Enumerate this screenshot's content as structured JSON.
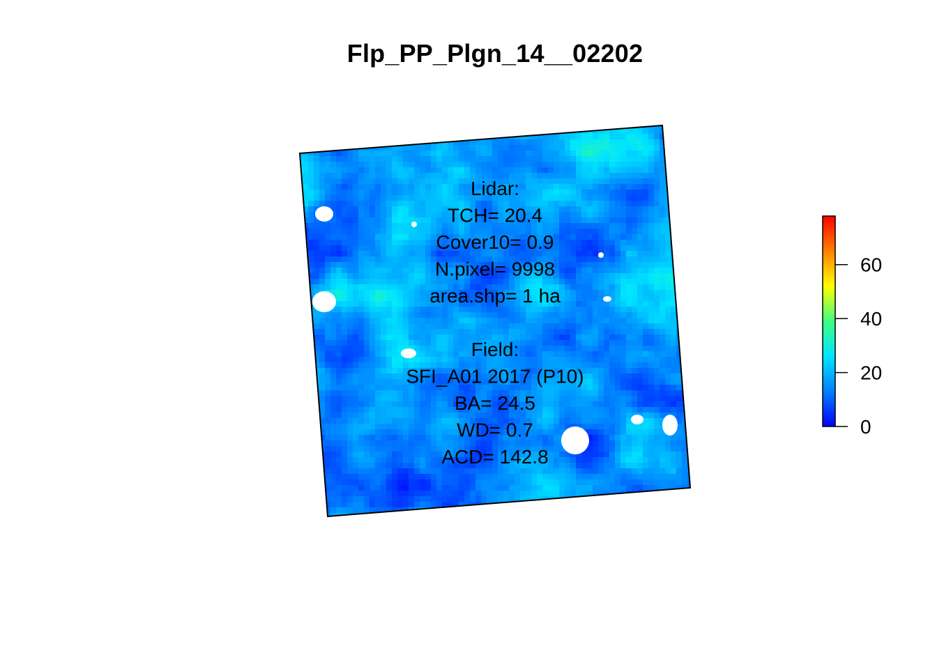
{
  "title": "Flp_PP_Plgn_14__02202",
  "chart_data": {
    "type": "heatmap",
    "title": "Flp_PP_Plgn_14__02202",
    "colorbar": {
      "min": 0,
      "max": 78,
      "ticks": [
        0,
        20,
        40,
        60
      ],
      "tick_labels": [
        "0",
        "20",
        "40",
        "60"
      ],
      "colors": [
        "#0000ff",
        "#0080ff",
        "#00e5ff",
        "#40ff80",
        "#ffff00",
        "#ff8000",
        "#ff0000"
      ]
    },
    "raster_value_range": [
      0,
      35
    ],
    "annotation_lines": [
      "Lidar:",
      "TCH= 20.4",
      "Cover10= 0.9",
      "N.pixel= 9998",
      "area.shp= 1 ha",
      "",
      "Field:",
      "SFI_A01 2017 (P10)",
      "BA= 24.5",
      "WD= 0.7",
      "ACD= 142.8"
    ]
  }
}
